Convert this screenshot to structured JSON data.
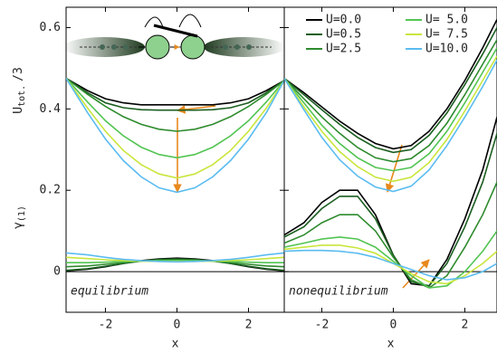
{
  "chart_data": [
    {
      "type": "line",
      "ylabel": "U",
      "ylabel_sub": "tot.",
      "ylabel_suffix": "/3",
      "y2label": "γ",
      "y2label_sub": "(1)",
      "xlabel": "x",
      "annotation": "equilibrium",
      "xlim": [
        -3.1,
        3
      ],
      "ylim": [
        -0.1,
        0.65
      ],
      "xticks": [
        -2,
        0,
        2
      ],
      "yticks": [
        0,
        0.2,
        0.4,
        0.6
      ],
      "x": [
        -3.1,
        -2.5,
        -2,
        -1.5,
        -1,
        -0.5,
        0,
        0.5,
        1,
        1.5,
        2,
        2.5,
        3
      ],
      "series": [
        {
          "color": "#000000",
          "values": [
            0.475,
            0.445,
            0.425,
            0.415,
            0.41,
            0.41,
            0.41,
            0.41,
            0.41,
            0.415,
            0.425,
            0.445,
            0.47
          ],
          "gamma": [
            0.002,
            0.006,
            0.012,
            0.02,
            0.027,
            0.031,
            0.033,
            0.031,
            0.027,
            0.02,
            0.012,
            0.006,
            0.002
          ]
        },
        {
          "color": "#1b5e20",
          "values": [
            0.475,
            0.44,
            0.415,
            0.403,
            0.398,
            0.397,
            0.397,
            0.397,
            0.398,
            0.403,
            0.415,
            0.44,
            0.47
          ],
          "gamma": [
            0.003,
            0.007,
            0.013,
            0.02,
            0.026,
            0.03,
            0.031,
            0.03,
            0.026,
            0.02,
            0.013,
            0.007,
            0.003
          ]
        },
        {
          "color": "#2e8b2e",
          "values": [
            0.475,
            0.436,
            0.406,
            0.381,
            0.362,
            0.35,
            0.345,
            0.35,
            0.362,
            0.381,
            0.406,
            0.436,
            0.47
          ],
          "gamma": [
            0.012,
            0.014,
            0.018,
            0.022,
            0.026,
            0.028,
            0.029,
            0.028,
            0.026,
            0.022,
            0.018,
            0.014,
            0.012
          ]
        },
        {
          "color": "#52c452",
          "values": [
            0.475,
            0.417,
            0.371,
            0.334,
            0.306,
            0.288,
            0.28,
            0.288,
            0.306,
            0.334,
            0.371,
            0.417,
            0.47
          ],
          "gamma": [
            0.022,
            0.022,
            0.023,
            0.025,
            0.026,
            0.027,
            0.027,
            0.027,
            0.026,
            0.025,
            0.023,
            0.022,
            0.022
          ]
        },
        {
          "color": "#c8e63c",
          "values": [
            0.475,
            0.402,
            0.345,
            0.298,
            0.263,
            0.24,
            0.23,
            0.24,
            0.263,
            0.298,
            0.345,
            0.402,
            0.47
          ],
          "gamma": [
            0.035,
            0.032,
            0.029,
            0.027,
            0.026,
            0.025,
            0.025,
            0.025,
            0.026,
            0.027,
            0.029,
            0.032,
            0.035
          ]
        },
        {
          "color": "#5bbcf0",
          "values": [
            0.475,
            0.391,
            0.326,
            0.273,
            0.233,
            0.206,
            0.195,
            0.206,
            0.233,
            0.273,
            0.326,
            0.391,
            0.47
          ],
          "gamma": [
            0.046,
            0.041,
            0.035,
            0.03,
            0.027,
            0.025,
            0.024,
            0.025,
            0.027,
            0.03,
            0.035,
            0.041,
            0.046
          ]
        }
      ]
    },
    {
      "type": "line",
      "xlabel": "x",
      "annotation": "nonequilibrium",
      "legend": "upper left",
      "xlim": [
        -3.05,
        2.9
      ],
      "ylim": [
        -0.1,
        0.65
      ],
      "xticks": [
        -2,
        0,
        2
      ],
      "x": [
        -3.05,
        -2.5,
        -2,
        -1.5,
        -1,
        -0.5,
        0,
        0.5,
        1,
        1.5,
        2,
        2.5,
        2.9
      ],
      "series": [
        {
          "name": "U=0.0",
          "color": "#000000",
          "values": [
            0.475,
            0.44,
            0.405,
            0.37,
            0.34,
            0.315,
            0.302,
            0.31,
            0.345,
            0.4,
            0.47,
            0.55,
            0.62
          ],
          "gamma": [
            0.09,
            0.12,
            0.17,
            0.2,
            0.2,
            0.14,
            0.04,
            -0.03,
            -0.035,
            0.03,
            0.13,
            0.25,
            0.38
          ]
        },
        {
          "name": "U=0.5",
          "color": "#1b5e20",
          "values": [
            0.475,
            0.435,
            0.398,
            0.362,
            0.33,
            0.305,
            0.293,
            0.3,
            0.335,
            0.39,
            0.46,
            0.535,
            0.6
          ],
          "gamma": [
            0.085,
            0.11,
            0.155,
            0.185,
            0.185,
            0.13,
            0.04,
            -0.025,
            -0.035,
            0.02,
            0.11,
            0.22,
            0.34
          ]
        },
        {
          "name": "U=2.5",
          "color": "#2e8b2e",
          "values": [
            0.475,
            0.425,
            0.38,
            0.34,
            0.305,
            0.28,
            0.27,
            0.278,
            0.31,
            0.365,
            0.435,
            0.51,
            0.57
          ],
          "gamma": [
            0.07,
            0.09,
            0.12,
            0.14,
            0.14,
            0.1,
            0.035,
            -0.02,
            -0.04,
            -0.01,
            0.06,
            0.14,
            0.22
          ]
        },
        {
          "name": "U= 5.0",
          "color": "#52c452",
          "values": [
            0.475,
            0.415,
            0.36,
            0.315,
            0.28,
            0.256,
            0.248,
            0.256,
            0.29,
            0.345,
            0.415,
            0.49,
            0.55
          ],
          "gamma": [
            0.06,
            0.07,
            0.08,
            0.085,
            0.08,
            0.06,
            0.025,
            -0.01,
            -0.04,
            -0.035,
            0.0,
            0.05,
            0.1
          ]
        },
        {
          "name": "U= 7.5",
          "color": "#c8e63c",
          "values": [
            0.475,
            0.405,
            0.345,
            0.295,
            0.258,
            0.232,
            0.222,
            0.232,
            0.268,
            0.325,
            0.395,
            0.47,
            0.53
          ],
          "gamma": [
            0.055,
            0.06,
            0.065,
            0.065,
            0.058,
            0.045,
            0.02,
            -0.005,
            -0.025,
            -0.03,
            -0.01,
            0.02,
            0.05
          ]
        },
        {
          "name": "U=10.0",
          "color": "#5bbcf0",
          "values": [
            0.475,
            0.398,
            0.33,
            0.275,
            0.235,
            0.208,
            0.197,
            0.21,
            0.25,
            0.31,
            0.38,
            0.455,
            0.52
          ],
          "gamma": [
            0.05,
            0.052,
            0.052,
            0.05,
            0.045,
            0.035,
            0.02,
            0.005,
            -0.01,
            -0.02,
            -0.015,
            0.0,
            0.02
          ]
        }
      ]
    }
  ]
}
